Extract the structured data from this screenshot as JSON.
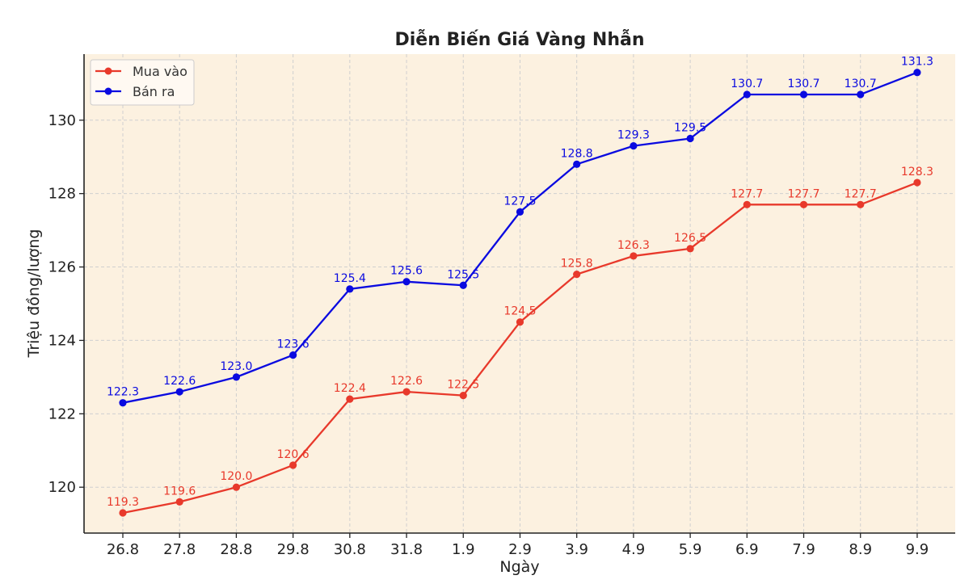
{
  "chart_data": {
    "type": "line",
    "title": "Diễn Biến Giá Vàng Nhẫn",
    "xlabel": "Ngày",
    "ylabel": "Triệu đồng/lượng",
    "categories": [
      "26.8",
      "27.8",
      "28.8",
      "29.8",
      "30.8",
      "31.8",
      "1.9",
      "2.9",
      "3.9",
      "4.9",
      "5.9",
      "6.9",
      "7.9",
      "8.9",
      "9.9"
    ],
    "series": [
      {
        "name": "Mua vào",
        "color": "#e8392b",
        "values": [
          119.3,
          119.6,
          120.0,
          120.6,
          122.4,
          122.6,
          122.5,
          124.5,
          125.8,
          126.3,
          126.5,
          127.7,
          127.7,
          127.7,
          128.3
        ],
        "labels": [
          "119.3",
          "119.6",
          "120.0",
          "120.6",
          "122.4",
          "122.6",
          "122.5",
          "124.5",
          "125.8",
          "126.3",
          "126.5",
          "127.7",
          "127.7",
          "127.7",
          "128.3"
        ]
      },
      {
        "name": "Bán ra",
        "color": "#0a0ae0",
        "values": [
          122.3,
          122.6,
          123.0,
          123.6,
          125.4,
          125.6,
          125.5,
          127.5,
          128.8,
          129.3,
          129.5,
          130.7,
          130.7,
          130.7,
          131.3
        ],
        "labels": [
          "122.3",
          "122.6",
          "123.0",
          "123.6",
          "125.4",
          "125.6",
          "125.5",
          "127.5",
          "128.8",
          "129.3",
          "129.5",
          "130.7",
          "130.7",
          "130.7",
          "131.3"
        ]
      }
    ],
    "yticks": [
      120,
      122,
      124,
      126,
      128,
      130
    ],
    "ytick_labels": [
      "120",
      "122",
      "124",
      "126",
      "128",
      "130"
    ],
    "ylim": [
      118.75,
      131.8
    ],
    "grid": true,
    "legend_position": "top-left",
    "background_color": "#fcf1e0"
  }
}
